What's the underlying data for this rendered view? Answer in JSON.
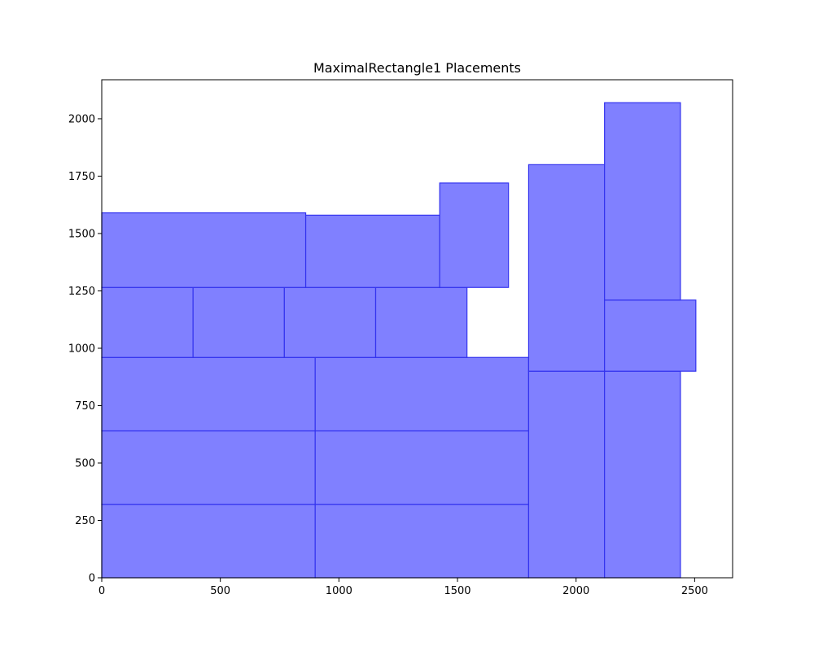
{
  "chart_data": {
    "type": "rectangle-placements",
    "title": "MaximalRectangle1 Placements",
    "xlabel": "",
    "ylabel": "",
    "xlim": [
      0,
      2660
    ],
    "ylim": [
      0,
      2170
    ],
    "xticks": [
      0,
      500,
      1000,
      1500,
      2000,
      2500
    ],
    "yticks": [
      0,
      250,
      500,
      750,
      1000,
      1250,
      1500,
      1750,
      2000
    ],
    "grid": false,
    "fill_color": "#8080ff",
    "edge_color": "#3333ee",
    "rectangles": [
      {
        "x": 0,
        "y": 0,
        "w": 900,
        "h": 320
      },
      {
        "x": 900,
        "y": 0,
        "w": 900,
        "h": 320
      },
      {
        "x": 0,
        "y": 320,
        "w": 900,
        "h": 320
      },
      {
        "x": 900,
        "y": 320,
        "w": 900,
        "h": 320
      },
      {
        "x": 0,
        "y": 640,
        "w": 900,
        "h": 320
      },
      {
        "x": 900,
        "y": 640,
        "w": 900,
        "h": 320
      },
      {
        "x": 1800,
        "y": 0,
        "w": 320,
        "h": 900
      },
      {
        "x": 2120,
        "y": 0,
        "w": 320,
        "h": 900
      },
      {
        "x": 0,
        "y": 960,
        "w": 385,
        "h": 305
      },
      {
        "x": 385,
        "y": 960,
        "w": 385,
        "h": 305
      },
      {
        "x": 770,
        "y": 960,
        "w": 385,
        "h": 305
      },
      {
        "x": 1155,
        "y": 960,
        "w": 385,
        "h": 305
      },
      {
        "x": 1800,
        "y": 900,
        "w": 320,
        "h": 900
      },
      {
        "x": 2120,
        "y": 900,
        "w": 385,
        "h": 310
      },
      {
        "x": 2120,
        "y": 1210,
        "w": 320,
        "h": 860
      },
      {
        "x": 0,
        "y": 1265,
        "w": 860,
        "h": 325
      },
      {
        "x": 860,
        "y": 1265,
        "w": 565,
        "h": 315
      },
      {
        "x": 1425,
        "y": 1265,
        "w": 290,
        "h": 455
      }
    ]
  }
}
